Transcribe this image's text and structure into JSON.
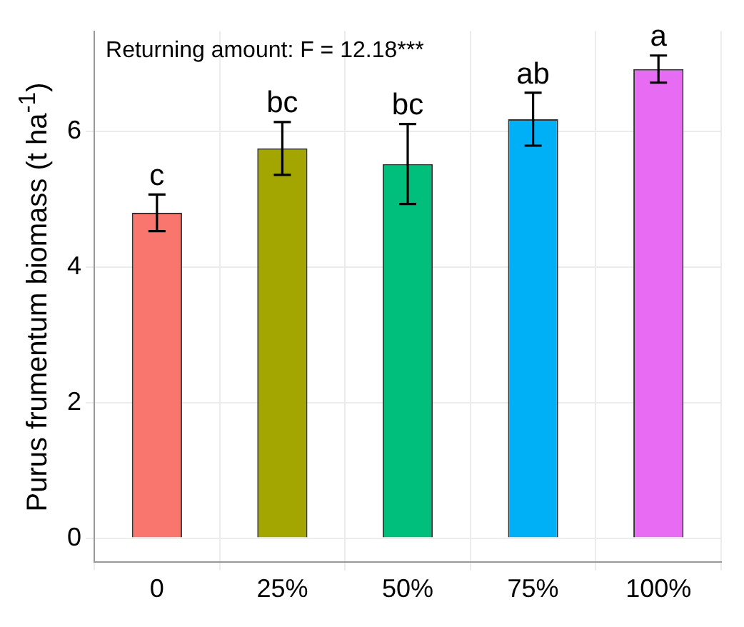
{
  "chart_data": {
    "type": "bar",
    "ylabel": "Purus frumentum biomass (t ha$^{-1}$)",
    "categories": [
      "0",
      "25%",
      "50%",
      "75%",
      "100%"
    ],
    "values": [
      4.8,
      5.75,
      5.52,
      6.18,
      6.92
    ],
    "colors": [
      "#f8766d",
      "#a3a500",
      "#00bf7d",
      "#00b0f6",
      "#e76bf3"
    ],
    "errors": [
      0.27,
      0.39,
      0.59,
      0.39,
      0.2
    ],
    "ylim": [
      -0.35,
      7.48
    ],
    "yticks": [
      0,
      2,
      4,
      6
    ],
    "grid": true,
    "annotations": [
      "Returning amount: F = 12.18***",
      {
        "text": "c",
        "x": "0",
        "y": 5.07
      },
      {
        "text": "bc",
        "x": "25%",
        "y": 6.14
      },
      {
        "text": "bc",
        "x": "50%",
        "y": 6.11
      },
      {
        "text": "ab",
        "x": "75%",
        "y": 6.57
      },
      {
        "text": "a",
        "x": "100%",
        "y": 7.12
      }
    ]
  }
}
